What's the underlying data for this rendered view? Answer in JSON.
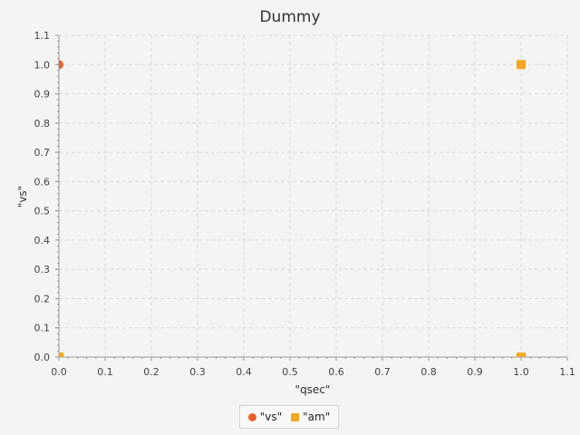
{
  "chart_data": {
    "type": "scatter",
    "title": "Dummy",
    "xlabel": "\"qsec\"",
    "ylabel": "\"vs\"",
    "xlim": [
      0.0,
      1.1
    ],
    "ylim": [
      0.0,
      1.1
    ],
    "xticks": [
      "0.0",
      "0.1",
      "0.2",
      "0.3",
      "0.4",
      "0.5",
      "0.6",
      "0.7",
      "0.8",
      "0.9",
      "1.0",
      "1.1"
    ],
    "yticks": [
      "0.0",
      "0.1",
      "0.2",
      "0.3",
      "0.4",
      "0.5",
      "0.6",
      "0.7",
      "0.8",
      "0.9",
      "1.0",
      "1.1"
    ],
    "grid": true,
    "legend_position": "bottom",
    "series": [
      {
        "name": "\"vs\"",
        "marker": "circle",
        "color": "#e8602c",
        "points": [
          [
            0.0,
            1.0
          ]
        ]
      },
      {
        "name": "\"am\"",
        "marker": "square",
        "color": "#f5a623",
        "points": [
          [
            1.0,
            1.0
          ],
          [
            1.0,
            0.0
          ],
          [
            0.0,
            0.0
          ]
        ]
      }
    ]
  }
}
